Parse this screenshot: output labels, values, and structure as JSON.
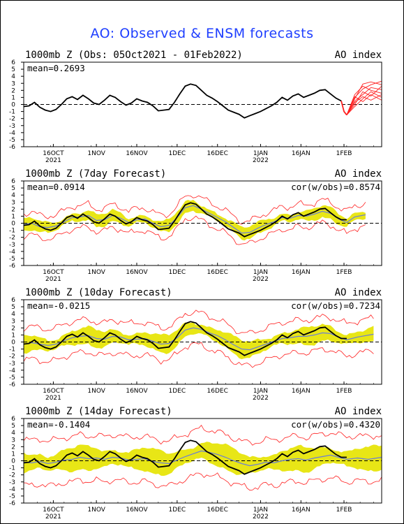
{
  "page": {
    "title": "AO: Observed & ENSM forecasts"
  },
  "chart_data": [
    {
      "type": "line",
      "panel": "observed",
      "title": "1000mb Z (Obs: 05Oct2021 - 01Feb2022)",
      "right_title": "AO index",
      "mean_text": "mean=0.2693",
      "cor_text": "",
      "ylim": [
        -6,
        6
      ],
      "yticks": [
        6,
        5,
        4,
        3,
        2,
        1,
        0,
        -1,
        -2,
        -3,
        -4,
        -5,
        -6
      ],
      "xticks": [
        {
          "day": 11,
          "label": "16OCT",
          "sub": "2021"
        },
        {
          "day": 27,
          "label": "1NOV",
          "sub": ""
        },
        {
          "day": 42,
          "label": "16NOV",
          "sub": ""
        },
        {
          "day": 57,
          "label": "1DEC",
          "sub": ""
        },
        {
          "day": 72,
          "label": "16DEC",
          "sub": ""
        },
        {
          "day": 88,
          "label": "1JAN",
          "sub": "2022"
        },
        {
          "day": 103,
          "label": "16JAN",
          "sub": ""
        },
        {
          "day": 119,
          "label": "1FEB",
          "sub": ""
        }
      ],
      "xrange": [
        0,
        133
      ],
      "zero_line": true,
      "obs": [
        [
          0,
          -0.3
        ],
        [
          2,
          -0.2
        ],
        [
          4,
          0.3
        ],
        [
          6,
          -0.4
        ],
        [
          8,
          -0.8
        ],
        [
          10,
          -1.0
        ],
        [
          12,
          -0.7
        ],
        [
          14,
          0.0
        ],
        [
          16,
          0.8
        ],
        [
          18,
          1.1
        ],
        [
          20,
          0.7
        ],
        [
          22,
          1.3
        ],
        [
          24,
          0.8
        ],
        [
          26,
          0.2
        ],
        [
          28,
          0.0
        ],
        [
          30,
          0.6
        ],
        [
          32,
          1.3
        ],
        [
          34,
          1.0
        ],
        [
          36,
          0.4
        ],
        [
          38,
          -0.1
        ],
        [
          40,
          0.2
        ],
        [
          42,
          0.8
        ],
        [
          44,
          0.5
        ],
        [
          46,
          0.3
        ],
        [
          48,
          -0.2
        ],
        [
          50,
          -0.9
        ],
        [
          52,
          -0.8
        ],
        [
          54,
          -0.7
        ],
        [
          56,
          0.3
        ],
        [
          58,
          1.5
        ],
        [
          60,
          2.6
        ],
        [
          62,
          2.9
        ],
        [
          64,
          2.7
        ],
        [
          66,
          2.0
        ],
        [
          68,
          1.3
        ],
        [
          70,
          0.9
        ],
        [
          72,
          0.4
        ],
        [
          74,
          -0.2
        ],
        [
          76,
          -0.8
        ],
        [
          78,
          -1.1
        ],
        [
          80,
          -1.4
        ],
        [
          82,
          -1.9
        ],
        [
          84,
          -1.6
        ],
        [
          86,
          -1.3
        ],
        [
          88,
          -1.0
        ],
        [
          90,
          -0.6
        ],
        [
          92,
          -0.2
        ],
        [
          94,
          0.3
        ],
        [
          96,
          1.0
        ],
        [
          98,
          0.6
        ],
        [
          100,
          1.2
        ],
        [
          102,
          1.5
        ],
        [
          104,
          1.0
        ],
        [
          106,
          1.3
        ],
        [
          108,
          1.6
        ],
        [
          110,
          2.0
        ],
        [
          112,
          2.1
        ],
        [
          114,
          1.5
        ],
        [
          116,
          0.9
        ],
        [
          118,
          0.5
        ],
        [
          119,
          -1.0
        ],
        [
          120,
          -1.5
        ]
      ],
      "ensemble_start": 120,
      "ensemble": [
        [
          [
            120,
            -1.5
          ],
          [
            123,
            1.0
          ],
          [
            126,
            2.2
          ],
          [
            129,
            2.8
          ],
          [
            133,
            3.3
          ]
        ],
        [
          [
            120,
            -1.5
          ],
          [
            123,
            0.5
          ],
          [
            126,
            1.4
          ],
          [
            129,
            2.4
          ],
          [
            133,
            2.1
          ]
        ],
        [
          [
            120,
            -1.5
          ],
          [
            123,
            0.0
          ],
          [
            126,
            1.8
          ],
          [
            129,
            1.2
          ],
          [
            133,
            2.6
          ]
        ],
        [
          [
            120,
            -1.5
          ],
          [
            123,
            1.4
          ],
          [
            126,
            2.6
          ],
          [
            129,
            2.0
          ],
          [
            133,
            1.6
          ]
        ],
        [
          [
            120,
            -1.5
          ],
          [
            123,
            -0.3
          ],
          [
            126,
            0.8
          ],
          [
            129,
            1.8
          ],
          [
            133,
            1.0
          ]
        ],
        [
          [
            120,
            -1.5
          ],
          [
            123,
            0.8
          ],
          [
            126,
            2.9
          ],
          [
            129,
            3.2
          ],
          [
            133,
            2.8
          ]
        ],
        [
          [
            120,
            -1.5
          ],
          [
            123,
            0.3
          ],
          [
            126,
            1.1
          ],
          [
            129,
            0.6
          ],
          [
            133,
            1.4
          ]
        ],
        [
          [
            120,
            -1.5
          ],
          [
            123,
            1.1
          ],
          [
            126,
            0.4
          ],
          [
            129,
            1.4
          ],
          [
            133,
            0.6
          ]
        ]
      ]
    },
    {
      "type": "line",
      "panel": "forecast",
      "title": "1000mb Z (7day Forecast)",
      "right_title": "AO index",
      "mean_text": "mean=0.0914",
      "cor_text": "cor(w/obs)=0.8574",
      "ylim": [
        -6,
        6
      ],
      "yticks": [
        6,
        5,
        4,
        3,
        2,
        1,
        0,
        -1,
        -2,
        -3,
        -4,
        -5,
        -6
      ],
      "xticks": [
        {
          "day": 11,
          "label": "16OCT",
          "sub": "2021"
        },
        {
          "day": 27,
          "label": "1NOV",
          "sub": ""
        },
        {
          "day": 42,
          "label": "16NOV",
          "sub": ""
        },
        {
          "day": 57,
          "label": "1DEC",
          "sub": ""
        },
        {
          "day": 72,
          "label": "16DEC",
          "sub": ""
        },
        {
          "day": 88,
          "label": "1JAN",
          "sub": "2022"
        },
        {
          "day": 103,
          "label": "16JAN",
          "sub": ""
        },
        {
          "day": 119,
          "label": "1FEB",
          "sub": ""
        }
      ],
      "xrange": [
        0,
        133
      ],
      "zero_line": true,
      "spread": 0.9,
      "outer": 1.6,
      "obs_end": 120,
      "fc_end": 127,
      "forecast": [
        [
          0,
          -0.2
        ],
        [
          3,
          0.0
        ],
        [
          6,
          -0.5
        ],
        [
          9,
          -0.6
        ],
        [
          12,
          -0.4
        ],
        [
          15,
          0.2
        ],
        [
          18,
          0.8
        ],
        [
          21,
          0.9
        ],
        [
          24,
          1.1
        ],
        [
          27,
          0.4
        ],
        [
          30,
          0.5
        ],
        [
          33,
          1.1
        ],
        [
          36,
          0.7
        ],
        [
          39,
          0.1
        ],
        [
          42,
          0.5
        ],
        [
          45,
          0.6
        ],
        [
          48,
          0.0
        ],
        [
          51,
          -0.5
        ],
        [
          54,
          -0.3
        ],
        [
          57,
          0.8
        ],
        [
          60,
          2.2
        ],
        [
          63,
          2.5
        ],
        [
          66,
          2.0
        ],
        [
          69,
          1.4
        ],
        [
          72,
          0.8
        ],
        [
          75,
          0.2
        ],
        [
          78,
          -0.6
        ],
        [
          81,
          -1.4
        ],
        [
          84,
          -1.3
        ],
        [
          87,
          -0.7
        ],
        [
          90,
          -0.2
        ],
        [
          93,
          0.2
        ],
        [
          96,
          0.8
        ],
        [
          99,
          0.7
        ],
        [
          102,
          1.1
        ],
        [
          105,
          1.0
        ],
        [
          108,
          1.3
        ],
        [
          111,
          1.7
        ],
        [
          114,
          1.4
        ],
        [
          117,
          0.6
        ],
        [
          120,
          0.1
        ],
        [
          123,
          0.9
        ],
        [
          127,
          1.2
        ]
      ]
    },
    {
      "type": "line",
      "panel": "forecast",
      "title": "1000mb Z (10day Forecast)",
      "right_title": "AO index",
      "mean_text": "mean=-0.0215",
      "cor_text": "cor(w/obs)=0.7234",
      "ylim": [
        -6,
        6
      ],
      "yticks": [
        6,
        5,
        4,
        3,
        2,
        1,
        0,
        -1,
        -2,
        -3,
        -4,
        -5,
        -6
      ],
      "xticks": [
        {
          "day": 11,
          "label": "16OCT",
          "sub": "2021"
        },
        {
          "day": 27,
          "label": "1NOV",
          "sub": ""
        },
        {
          "day": 42,
          "label": "16NOV",
          "sub": ""
        },
        {
          "day": 57,
          "label": "1DEC",
          "sub": ""
        },
        {
          "day": 72,
          "label": "16DEC",
          "sub": ""
        },
        {
          "day": 88,
          "label": "1JAN",
          "sub": "2022"
        },
        {
          "day": 103,
          "label": "16JAN",
          "sub": ""
        },
        {
          "day": 119,
          "label": "1FEB",
          "sub": ""
        }
      ],
      "xrange": [
        0,
        133
      ],
      "zero_line": true,
      "spread": 1.3,
      "outer": 2.3,
      "obs_end": 120,
      "fc_end": 130,
      "forecast": [
        [
          0,
          -0.3
        ],
        [
          3,
          -0.1
        ],
        [
          6,
          -0.3
        ],
        [
          9,
          -0.5
        ],
        [
          12,
          -0.3
        ],
        [
          15,
          0.2
        ],
        [
          18,
          0.6
        ],
        [
          21,
          0.8
        ],
        [
          24,
          0.9
        ],
        [
          27,
          0.5
        ],
        [
          30,
          0.4
        ],
        [
          33,
          0.8
        ],
        [
          36,
          0.7
        ],
        [
          39,
          0.3
        ],
        [
          42,
          0.4
        ],
        [
          45,
          0.5
        ],
        [
          48,
          0.1
        ],
        [
          51,
          -0.3
        ],
        [
          54,
          -0.2
        ],
        [
          57,
          0.6
        ],
        [
          60,
          1.7
        ],
        [
          63,
          2.0
        ],
        [
          66,
          1.8
        ],
        [
          69,
          1.3
        ],
        [
          72,
          0.9
        ],
        [
          75,
          0.3
        ],
        [
          78,
          -0.4
        ],
        [
          81,
          -1.0
        ],
        [
          84,
          -1.1
        ],
        [
          87,
          -0.7
        ],
        [
          90,
          -0.3
        ],
        [
          93,
          0.1
        ],
        [
          96,
          0.5
        ],
        [
          99,
          0.6
        ],
        [
          102,
          0.8
        ],
        [
          105,
          0.8
        ],
        [
          108,
          1.0
        ],
        [
          111,
          1.3
        ],
        [
          114,
          1.2
        ],
        [
          117,
          0.7
        ],
        [
          120,
          0.3
        ],
        [
          124,
          0.7
        ],
        [
          130,
          1.1
        ]
      ]
    },
    {
      "type": "line",
      "panel": "forecast",
      "title": "1000mb Z (14day Forecast)",
      "right_title": "AO index",
      "mean_text": "mean=-0.1404",
      "cor_text": "cor(w/obs)=0.4320",
      "ylim": [
        -6,
        6
      ],
      "yticks": [
        6,
        5,
        4,
        3,
        2,
        1,
        0,
        -1,
        -2,
        -3,
        -4,
        -5,
        -6
      ],
      "xticks": [
        {
          "day": 11,
          "label": "16OCT",
          "sub": "2021"
        },
        {
          "day": 27,
          "label": "1NOV",
          "sub": ""
        },
        {
          "day": 42,
          "label": "16NOV",
          "sub": ""
        },
        {
          "day": 57,
          "label": "1DEC",
          "sub": ""
        },
        {
          "day": 72,
          "label": "16DEC",
          "sub": ""
        },
        {
          "day": 88,
          "label": "1JAN",
          "sub": "2022"
        },
        {
          "day": 103,
          "label": "16JAN",
          "sub": ""
        },
        {
          "day": 119,
          "label": "1FEB",
          "sub": ""
        }
      ],
      "xrange": [
        0,
        133
      ],
      "zero_line": true,
      "spread": 1.8,
      "outer": 3.2,
      "obs_end": 120,
      "fc_end": 133,
      "forecast": [
        [
          0,
          -0.2
        ],
        [
          3,
          -0.3
        ],
        [
          6,
          -0.1
        ],
        [
          9,
          -0.4
        ],
        [
          12,
          -0.2
        ],
        [
          15,
          0.1
        ],
        [
          18,
          0.2
        ],
        [
          21,
          0.5
        ],
        [
          24,
          0.3
        ],
        [
          27,
          0.4
        ],
        [
          30,
          0.2
        ],
        [
          33,
          0.5
        ],
        [
          36,
          0.4
        ],
        [
          39,
          0.1
        ],
        [
          42,
          0.2
        ],
        [
          45,
          0.3
        ],
        [
          48,
          -0.1
        ],
        [
          51,
          -0.3
        ],
        [
          54,
          -0.4
        ],
        [
          57,
          0.1
        ],
        [
          60,
          0.6
        ],
        [
          63,
          1.0
        ],
        [
          66,
          1.4
        ],
        [
          69,
          1.2
        ],
        [
          72,
          0.9
        ],
        [
          75,
          0.5
        ],
        [
          78,
          0.0
        ],
        [
          81,
          -0.4
        ],
        [
          84,
          -0.7
        ],
        [
          87,
          -0.5
        ],
        [
          90,
          -0.2
        ],
        [
          93,
          -0.3
        ],
        [
          96,
          0.0
        ],
        [
          99,
          0.2
        ],
        [
          102,
          0.3
        ],
        [
          105,
          0.1
        ],
        [
          108,
          0.4
        ],
        [
          111,
          0.6
        ],
        [
          114,
          0.8
        ],
        [
          117,
          0.5
        ],
        [
          120,
          0.2
        ],
        [
          124,
          0.4
        ],
        [
          128,
          0.2
        ],
        [
          133,
          0.5
        ]
      ]
    }
  ]
}
